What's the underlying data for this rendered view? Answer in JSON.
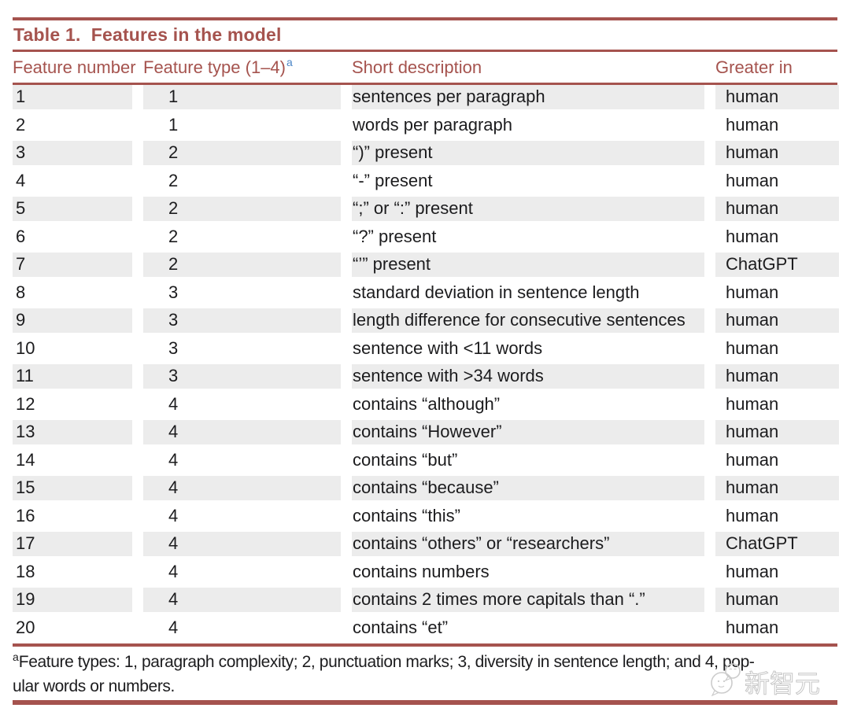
{
  "title": "Table 1.  Features in the model",
  "accent_color": "#A5534E",
  "row_shade_color": "#ECECEC",
  "superscript_color": "#4D87C7",
  "columns": [
    {
      "label": "Feature number"
    },
    {
      "label": "Feature type (1–4)",
      "superscript": "a"
    },
    {
      "label": "Short description"
    },
    {
      "label": "Greater in"
    }
  ],
  "rows": [
    {
      "feature_number": "1",
      "feature_type": "1",
      "description": "sentences per paragraph",
      "greater_in": "human"
    },
    {
      "feature_number": "2",
      "feature_type": "1",
      "description": "words per paragraph",
      "greater_in": "human"
    },
    {
      "feature_number": "3",
      "feature_type": "2",
      "description": "“)” present",
      "greater_in": "human"
    },
    {
      "feature_number": "4",
      "feature_type": "2",
      "description": "“-” present",
      "greater_in": "human"
    },
    {
      "feature_number": "5",
      "feature_type": "2",
      "description": "“;” or “:” present",
      "greater_in": "human"
    },
    {
      "feature_number": "6",
      "feature_type": "2",
      "description": "“?” present",
      "greater_in": "human"
    },
    {
      "feature_number": "7",
      "feature_type": "2",
      "description": "“’” present",
      "greater_in": "ChatGPT"
    },
    {
      "feature_number": "8",
      "feature_type": "3",
      "description": "standard deviation in sentence length",
      "greater_in": "human"
    },
    {
      "feature_number": "9",
      "feature_type": "3",
      "description": "length difference for consecutive sentences",
      "greater_in": "human"
    },
    {
      "feature_number": "10",
      "feature_type": "3",
      "description": "sentence with <11 words",
      "greater_in": "human"
    },
    {
      "feature_number": "11",
      "feature_type": "3",
      "description": "sentence with >34 words",
      "greater_in": "human"
    },
    {
      "feature_number": "12",
      "feature_type": "4",
      "description": "contains “although”",
      "greater_in": "human"
    },
    {
      "feature_number": "13",
      "feature_type": "4",
      "description": "contains “However”",
      "greater_in": "human"
    },
    {
      "feature_number": "14",
      "feature_type": "4",
      "description": "contains “but”",
      "greater_in": "human"
    },
    {
      "feature_number": "15",
      "feature_type": "4",
      "description": "contains “because”",
      "greater_in": "human"
    },
    {
      "feature_number": "16",
      "feature_type": "4",
      "description": "contains “this”",
      "greater_in": "human"
    },
    {
      "feature_number": "17",
      "feature_type": "4",
      "description": "contains “others” or “researchers”",
      "greater_in": "ChatGPT"
    },
    {
      "feature_number": "18",
      "feature_type": "4",
      "description": "contains numbers",
      "greater_in": "human"
    },
    {
      "feature_number": "19",
      "feature_type": "4",
      "description": "contains 2 times more capitals than “.”",
      "greater_in": "human"
    },
    {
      "feature_number": "20",
      "feature_type": "4",
      "description": "contains “et”",
      "greater_in": "human"
    }
  ],
  "footnote": {
    "marker": "a",
    "line1": "Feature types: 1, paragraph complexity; 2, punctuation marks; 3, diversity in sentence length; and 4, pop-",
    "line2": "ular words or numbers."
  },
  "watermark": {
    "logo": "chat-bubbles-logo",
    "text": "新智元"
  }
}
